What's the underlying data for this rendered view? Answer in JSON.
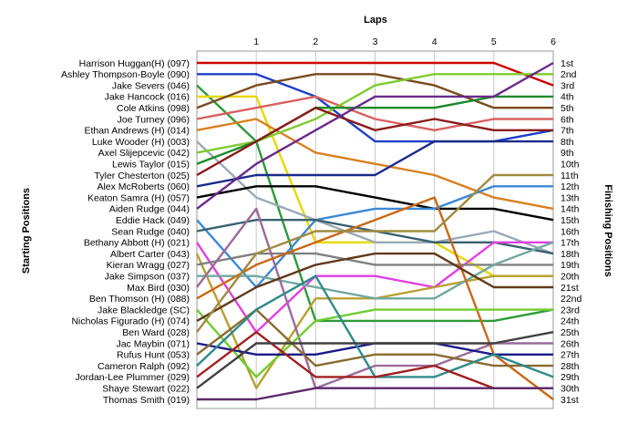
{
  "chart_data": {
    "type": "line",
    "title": "",
    "xlabel": "Laps",
    "ylabel_left": "Starting Positions",
    "ylabel_right": "Finishing Positions",
    "x_ticks": [
      "1",
      "2",
      "3",
      "4",
      "5",
      "6"
    ],
    "x_range": [
      0,
      6
    ],
    "y_range": [
      1,
      31
    ],
    "y_inverted": true,
    "grid": "vertical",
    "legend": "none",
    "start_labels": [
      "Harrison Huggan(H) (097)",
      "Ashley Thompson-Boyle (090)",
      "Jake Severs (046)",
      "Jake Hancock (016)",
      "Cole Atkins (098)",
      "Joe Turney (096)",
      "Ethan Andrews (H) (014)",
      "Luke Wooder (H) (003)",
      "Axel Slijepcevic (042)",
      "Lewis Taylor (015)",
      "Tyler Chesterton (025)",
      "Alex McRoberts (060)",
      "Keaton Samra (H) (057)",
      "Aiden Rudge (044)",
      "Eddie Hack (049)",
      "Sean Rudge (040)",
      "Bethany Abbott (H) (021)",
      "Albert Carter (043)",
      "Kieran Wragg (027)",
      "Jake Simpson (037)",
      "Max Bird (030)",
      "Ben Thomson (H) (088)",
      "Jake Blackledge (SC)",
      "Nicholas Figurado (H) (074)",
      "Ben Ward (028)",
      "Jac Maybin (071)",
      "Rufus Hunt (053)",
      "Cameron Ralph (092)",
      "Jordan-Lee Plummer (029)",
      "Shaye Stewart (022)",
      "Thomas Smith (019)"
    ],
    "finish_labels": [
      "1st",
      "2nd",
      "3rd",
      "4th",
      "5th",
      "6th",
      "7th",
      "8th",
      "9th",
      "10th",
      "11th",
      "12th",
      "13th",
      "14th",
      "15th",
      "16th",
      "17th",
      "18th",
      "19th",
      "20th",
      "21st",
      "22nd",
      "23rd",
      "24th",
      "25th",
      "26th",
      "27th",
      "28th",
      "29th",
      "30th",
      "31st"
    ],
    "series": [
      {
        "color": "#cc0000",
        "positions": [
          1,
          1,
          1,
          1,
          1,
          1,
          3
        ]
      },
      {
        "color": "#1f3fc8",
        "positions": [
          2,
          2,
          4,
          8,
          8,
          8,
          7
        ]
      },
      {
        "color": "#2e9a3a",
        "positions": [
          3,
          8,
          24,
          24,
          24,
          24,
          23
        ]
      },
      {
        "color": "#e6d800",
        "positions": [
          4,
          4,
          17,
          17,
          17,
          20,
          20
        ]
      },
      {
        "color": "#7a4a1e",
        "positions": [
          5,
          3,
          2,
          2,
          3,
          5,
          5
        ]
      },
      {
        "color": "#d86060",
        "positions": [
          6,
          5,
          4,
          6,
          7,
          6,
          6
        ]
      },
      {
        "color": "#d88020",
        "positions": [
          7,
          6,
          9,
          10,
          11,
          13,
          14
        ]
      },
      {
        "color": "#9aa9b8",
        "positions": [
          8,
          13,
          15,
          17,
          17,
          16,
          18
        ]
      },
      {
        "color": "#7fcc30",
        "positions": [
          9,
          8,
          6,
          3,
          2,
          2,
          2
        ]
      },
      {
        "color": "#1a8a28",
        "positions": [
          10,
          8,
          5,
          5,
          5,
          4,
          4
        ]
      },
      {
        "color": "#8a1a18",
        "positions": [
          11,
          8,
          5,
          7,
          6,
          7,
          7
        ]
      },
      {
        "color": "#1a2a8a",
        "positions": [
          12,
          11,
          11,
          11,
          8,
          8,
          8
        ]
      },
      {
        "color": "#000000",
        "positions": [
          13,
          12,
          12,
          13,
          14,
          14,
          15
        ]
      },
      {
        "color": "#6a2a8a",
        "positions": [
          14,
          10,
          7,
          4,
          4,
          4,
          1
        ]
      },
      {
        "color": "#3a88d8",
        "positions": [
          15,
          21,
          15,
          14,
          14,
          12,
          12
        ]
      },
      {
        "color": "#3a6070",
        "positions": [
          16,
          15,
          15,
          16,
          17,
          17,
          18
        ]
      },
      {
        "color": "#e040e0",
        "positions": [
          17,
          25,
          20,
          20,
          21,
          17,
          17
        ]
      },
      {
        "color": "#b8a030",
        "positions": [
          18,
          30,
          22,
          22,
          21,
          20,
          20
        ]
      },
      {
        "color": "#808080",
        "positions": [
          19,
          18,
          18,
          19,
          19,
          19,
          19
        ]
      },
      {
        "color": "#70a8a0",
        "positions": [
          20,
          20,
          21,
          22,
          22,
          19,
          17
        ]
      },
      {
        "color": "#9a6a9a",
        "positions": [
          21,
          14,
          30,
          28,
          28,
          26,
          26
        ]
      },
      {
        "color": "#c86818",
        "positions": [
          22,
          19,
          17,
          15,
          13,
          27,
          31
        ]
      },
      {
        "color": "#70cc30",
        "positions": [
          23,
          29,
          24,
          23,
          23,
          23,
          23
        ]
      },
      {
        "color": "#603a1a",
        "positions": [
          24,
          21,
          19,
          18,
          18,
          21,
          21
        ]
      },
      {
        "color": "#a08a40",
        "positions": [
          25,
          18,
          16,
          16,
          16,
          11,
          11
        ]
      },
      {
        "color": "#1a1a8a",
        "positions": [
          26,
          27,
          27,
          26,
          26,
          27,
          27
        ]
      },
      {
        "color": "#8a6a30",
        "positions": [
          27,
          23,
          28,
          27,
          27,
          28,
          28
        ]
      },
      {
        "color": "#2e8a8a",
        "positions": [
          28,
          23,
          20,
          29,
          29,
          27,
          29
        ]
      },
      {
        "color": "#a02020",
        "positions": [
          29,
          25,
          29,
          29,
          28,
          30,
          30
        ]
      },
      {
        "color": "#404040",
        "positions": [
          30,
          26,
          26,
          26,
          26,
          26,
          25
        ]
      },
      {
        "color": "#5a2a6a",
        "positions": [
          31,
          31,
          30,
          30,
          30,
          30,
          30
        ]
      }
    ]
  }
}
